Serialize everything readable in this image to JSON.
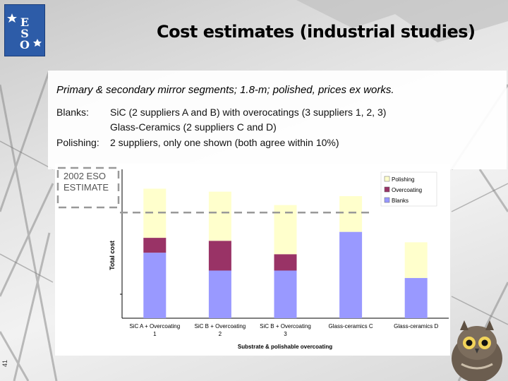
{
  "slide": {
    "title": "Cost estimates (industrial studies)",
    "subtitle": "Primary & secondary mirror segments; 1.8-m; polished, prices ex works.",
    "blanks_label": "Blanks:",
    "blanks_line1": "SiC (2 suppliers A and B) with overocatings (3 suppliers 1, 2, 3)",
    "blanks_line2": "Glass-Ceramics (2 suppliers C and D)",
    "polishing_label": "Polishing:",
    "polishing_text": "2 suppliers, only one shown (both agree within 10%)",
    "slide_number": "41",
    "estimate_box_line1": "2002 ESO",
    "estimate_box_line2": "ESTIMATE",
    "logo_text": "ESO"
  },
  "chart_data": {
    "type": "bar",
    "stacked": true,
    "categories": [
      [
        "SiC A + Overcoating",
        "1"
      ],
      [
        "SiC B + Overcoating",
        "2"
      ],
      [
        "SiC B + Overcoating",
        "3"
      ],
      [
        "Glass-ceramics C",
        ""
      ],
      [
        "Glass-ceramics D",
        ""
      ]
    ],
    "series": [
      {
        "name": "Blanks",
        "color": "#9999ff",
        "values": [
          44,
          32,
          32,
          58,
          27
        ]
      },
      {
        "name": "Overcoating",
        "color": "#993366",
        "values": [
          10,
          20,
          11,
          0,
          0
        ]
      },
      {
        "name": "Polishing",
        "color": "#ffffcc",
        "values": [
          33,
          33,
          33,
          24,
          24
        ]
      }
    ],
    "legend_order": [
      "Polishing",
      "Overcoating",
      "Blanks"
    ],
    "legend_position": "top-right",
    "xlabel": "Substrate & polishable overcoating",
    "ylabel": "Total cost",
    "ylim": [
      0,
      100
    ],
    "reference_line": {
      "label": "2002 ESO ESTIMATE",
      "value": 71,
      "style": "dashed"
    }
  }
}
